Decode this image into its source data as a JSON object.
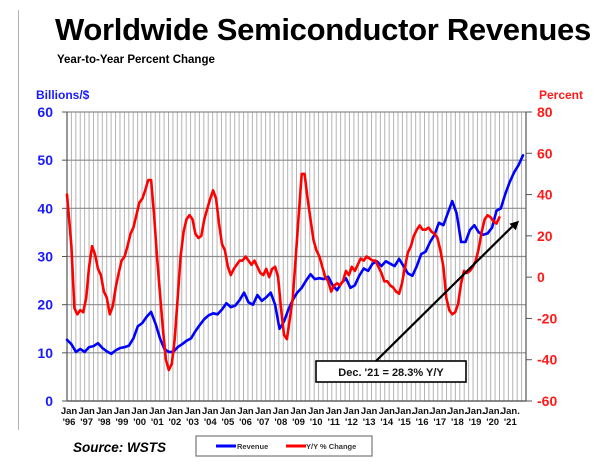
{
  "header": {
    "title": "Worldwide Semiconductor Revenues",
    "subtitle": "Year-to-Year Percent Change"
  },
  "footer": {
    "source": "Source: WSTS"
  },
  "chart_data": {
    "type": "line",
    "title": "Worldwide Semiconductor Revenues",
    "subtitle": "Year-to-Year Percent Change",
    "ylabel": "Billions/$",
    "y2label": "Percent",
    "ylim": [
      0,
      60
    ],
    "y2lim": [
      -60,
      80
    ],
    "yticks": [
      0,
      10,
      20,
      30,
      40,
      50,
      60
    ],
    "y2ticks": [
      -60,
      -40,
      -20,
      0,
      20,
      40,
      60,
      80
    ],
    "grid": true,
    "legend": "bottom-center",
    "colors": {
      "revenue": "#0000ff",
      "yoy": "#ff0000",
      "left_axis": "#1a1aff",
      "right_axis": "#ff1a1a",
      "arrow": "#000000"
    },
    "x_tick_labels": [
      [
        "Jan",
        "'96"
      ],
      [
        "Jan",
        "'97"
      ],
      [
        "Jan",
        "'98"
      ],
      [
        "Jan",
        "'99"
      ],
      [
        "Jan",
        "'00"
      ],
      [
        "Jan",
        "'01"
      ],
      [
        "Jan",
        "'02"
      ],
      [
        "Jan",
        "'03"
      ],
      [
        "Jan",
        "'04"
      ],
      [
        "Jan",
        "'05"
      ],
      [
        "Jan",
        "'06"
      ],
      [
        "Jan",
        "'07"
      ],
      [
        "Jan",
        "'08"
      ],
      [
        "Jan",
        "'09"
      ],
      [
        "Jan",
        "'10"
      ],
      [
        "Jan",
        "'11"
      ],
      [
        "Jan",
        "'12"
      ],
      [
        "Jan",
        "'13"
      ],
      [
        "Jan",
        "'14"
      ],
      [
        "Jan.",
        "'15"
      ],
      [
        "Jan.",
        "'16"
      ],
      [
        "Jan.",
        "'17"
      ],
      [
        "Jan.",
        "'18"
      ],
      [
        "Jan.",
        "'19"
      ],
      [
        "Jan.",
        "'20"
      ],
      [
        "Jan.",
        "'21"
      ]
    ],
    "x_start_year": 1996,
    "months_total": 312,
    "series": [
      {
        "name": "Revenue",
        "axis": "left",
        "points": [
          [
            0,
            12.7
          ],
          [
            3,
            11.8
          ],
          [
            6,
            10.2
          ],
          [
            9,
            10.8
          ],
          [
            12,
            10.2
          ],
          [
            15,
            11.2
          ],
          [
            18,
            11.4
          ],
          [
            21,
            12.0
          ],
          [
            24,
            11.0
          ],
          [
            27,
            10.3
          ],
          [
            30,
            9.8
          ],
          [
            33,
            10.5
          ],
          [
            36,
            11.0
          ],
          [
            39,
            11.2
          ],
          [
            42,
            11.5
          ],
          [
            45,
            13.0
          ],
          [
            48,
            15.5
          ],
          [
            51,
            16.2
          ],
          [
            54,
            17.5
          ],
          [
            57,
            18.5
          ],
          [
            60,
            16.0
          ],
          [
            63,
            13.0
          ],
          [
            66,
            10.8
          ],
          [
            69,
            10.2
          ],
          [
            72,
            10.2
          ],
          [
            75,
            11.2
          ],
          [
            78,
            11.8
          ],
          [
            81,
            12.5
          ],
          [
            84,
            13.0
          ],
          [
            87,
            14.5
          ],
          [
            90,
            15.8
          ],
          [
            93,
            17.0
          ],
          [
            96,
            17.8
          ],
          [
            99,
            18.2
          ],
          [
            102,
            18.0
          ],
          [
            105,
            19.0
          ],
          [
            108,
            20.3
          ],
          [
            111,
            19.5
          ],
          [
            114,
            19.8
          ],
          [
            117,
            21.0
          ],
          [
            120,
            22.5
          ],
          [
            123,
            20.5
          ],
          [
            126,
            20.0
          ],
          [
            129,
            22.0
          ],
          [
            132,
            20.8
          ],
          [
            135,
            21.5
          ],
          [
            138,
            22.5
          ],
          [
            141,
            20.0
          ],
          [
            144,
            15.0
          ],
          [
            147,
            16.5
          ],
          [
            150,
            19.0
          ],
          [
            153,
            21.0
          ],
          [
            156,
            22.5
          ],
          [
            159,
            23.5
          ],
          [
            162,
            25.0
          ],
          [
            165,
            26.3
          ],
          [
            168,
            25.3
          ],
          [
            171,
            25.5
          ],
          [
            174,
            25.3
          ],
          [
            177,
            25.8
          ],
          [
            180,
            24.0
          ],
          [
            183,
            23.0
          ],
          [
            186,
            24.5
          ],
          [
            189,
            25.5
          ],
          [
            192,
            23.5
          ],
          [
            195,
            24.0
          ],
          [
            198,
            26.0
          ],
          [
            201,
            27.5
          ],
          [
            204,
            27.0
          ],
          [
            207,
            28.5
          ],
          [
            210,
            29.0
          ],
          [
            213,
            28.0
          ],
          [
            216,
            29.0
          ],
          [
            219,
            28.5
          ],
          [
            222,
            28.0
          ],
          [
            225,
            29.5
          ],
          [
            228,
            28.0
          ],
          [
            231,
            26.5
          ],
          [
            234,
            26.0
          ],
          [
            237,
            28.0
          ],
          [
            240,
            30.5
          ],
          [
            243,
            31.0
          ],
          [
            246,
            33.0
          ],
          [
            249,
            34.5
          ],
          [
            252,
            37.0
          ],
          [
            255,
            36.5
          ],
          [
            258,
            39.0
          ],
          [
            261,
            41.5
          ],
          [
            264,
            39.0
          ],
          [
            267,
            33.0
          ],
          [
            270,
            33.0
          ],
          [
            273,
            35.5
          ],
          [
            276,
            36.5
          ],
          [
            279,
            35.0
          ],
          [
            282,
            34.5
          ],
          [
            285,
            34.8
          ],
          [
            288,
            36.0
          ],
          [
            291,
            39.5
          ],
          [
            294,
            40.0
          ],
          [
            297,
            43.0
          ],
          [
            300,
            45.5
          ],
          [
            303,
            47.5
          ],
          [
            306,
            49.0
          ],
          [
            309,
            51.0
          ]
        ]
      },
      {
        "name": "Y/Y % Change",
        "axis": "right",
        "points": [
          [
            0,
            40
          ],
          [
            3,
            15
          ],
          [
            5,
            -15
          ],
          [
            7,
            -18
          ],
          [
            9,
            -16
          ],
          [
            11,
            -17
          ],
          [
            13,
            -10
          ],
          [
            15,
            5
          ],
          [
            17,
            15
          ],
          [
            19,
            11
          ],
          [
            21,
            4
          ],
          [
            23,
            1
          ],
          [
            25,
            -7
          ],
          [
            27,
            -10
          ],
          [
            29,
            -18
          ],
          [
            31,
            -14
          ],
          [
            33,
            -5
          ],
          [
            35,
            2
          ],
          [
            37,
            8
          ],
          [
            39,
            10
          ],
          [
            41,
            15
          ],
          [
            43,
            21
          ],
          [
            45,
            24
          ],
          [
            47,
            30
          ],
          [
            49,
            36
          ],
          [
            51,
            38
          ],
          [
            53,
            42
          ],
          [
            55,
            47
          ],
          [
            57,
            47
          ],
          [
            59,
            30
          ],
          [
            61,
            10
          ],
          [
            63,
            -8
          ],
          [
            65,
            -25
          ],
          [
            67,
            -40
          ],
          [
            69,
            -45
          ],
          [
            71,
            -42
          ],
          [
            73,
            -30
          ],
          [
            75,
            -10
          ],
          [
            77,
            10
          ],
          [
            79,
            22
          ],
          [
            81,
            28
          ],
          [
            83,
            30
          ],
          [
            85,
            28
          ],
          [
            87,
            21
          ],
          [
            89,
            19
          ],
          [
            91,
            20
          ],
          [
            93,
            28
          ],
          [
            95,
            33
          ],
          [
            97,
            38
          ],
          [
            99,
            42
          ],
          [
            101,
            38
          ],
          [
            103,
            26
          ],
          [
            105,
            16
          ],
          [
            107,
            13
          ],
          [
            109,
            5
          ],
          [
            111,
            1
          ],
          [
            113,
            4
          ],
          [
            115,
            6
          ],
          [
            117,
            8
          ],
          [
            119,
            8
          ],
          [
            121,
            10
          ],
          [
            123,
            8
          ],
          [
            125,
            6
          ],
          [
            127,
            8
          ],
          [
            129,
            5
          ],
          [
            131,
            2
          ],
          [
            133,
            1
          ],
          [
            135,
            4
          ],
          [
            137,
            0
          ],
          [
            139,
            4
          ],
          [
            141,
            5
          ],
          [
            143,
            0
          ],
          [
            145,
            -15
          ],
          [
            147,
            -28
          ],
          [
            149,
            -30
          ],
          [
            151,
            -20
          ],
          [
            153,
            -10
          ],
          [
            155,
            10
          ],
          [
            157,
            30
          ],
          [
            159,
            50
          ],
          [
            161,
            50
          ],
          [
            163,
            38
          ],
          [
            165,
            28
          ],
          [
            167,
            18
          ],
          [
            169,
            13
          ],
          [
            171,
            10
          ],
          [
            173,
            5
          ],
          [
            175,
            0
          ],
          [
            177,
            -2
          ],
          [
            179,
            -7
          ],
          [
            181,
            -4
          ],
          [
            183,
            -3
          ],
          [
            185,
            -4
          ],
          [
            187,
            -2
          ],
          [
            189,
            3
          ],
          [
            191,
            1
          ],
          [
            193,
            5
          ],
          [
            195,
            3
          ],
          [
            197,
            6
          ],
          [
            199,
            9
          ],
          [
            201,
            8
          ],
          [
            203,
            10
          ],
          [
            205,
            9
          ],
          [
            207,
            8
          ],
          [
            209,
            8
          ],
          [
            211,
            5
          ],
          [
            213,
            2
          ],
          [
            215,
            -2
          ],
          [
            217,
            -2
          ],
          [
            219,
            -4
          ],
          [
            221,
            -5
          ],
          [
            223,
            -7
          ],
          [
            225,
            -8
          ],
          [
            227,
            -3
          ],
          [
            229,
            5
          ],
          [
            231,
            12
          ],
          [
            233,
            15
          ],
          [
            235,
            20
          ],
          [
            237,
            23
          ],
          [
            239,
            25
          ],
          [
            241,
            23
          ],
          [
            243,
            23
          ],
          [
            245,
            24
          ],
          [
            247,
            22
          ],
          [
            249,
            21
          ],
          [
            251,
            19
          ],
          [
            253,
            13
          ],
          [
            255,
            5
          ],
          [
            257,
            -10
          ],
          [
            259,
            -16
          ],
          [
            261,
            -18
          ],
          [
            263,
            -17
          ],
          [
            265,
            -13
          ],
          [
            267,
            -3
          ],
          [
            269,
            3
          ],
          [
            271,
            2
          ],
          [
            273,
            3
          ],
          [
            275,
            5
          ],
          [
            277,
            8
          ],
          [
            279,
            14
          ],
          [
            281,
            22
          ],
          [
            283,
            28
          ],
          [
            285,
            30
          ],
          [
            287,
            29
          ],
          [
            289,
            27
          ],
          [
            291,
            26
          ],
          [
            293,
            29
          ]
        ]
      }
    ],
    "annotation": {
      "text": "Dec. '21 = 28.3% Y/Y",
      "target_month": 309,
      "target_value_pct": 28.3
    }
  },
  "legend": {
    "revenue_label": "Revenue",
    "yoy_label": "Y/Y % Change"
  }
}
